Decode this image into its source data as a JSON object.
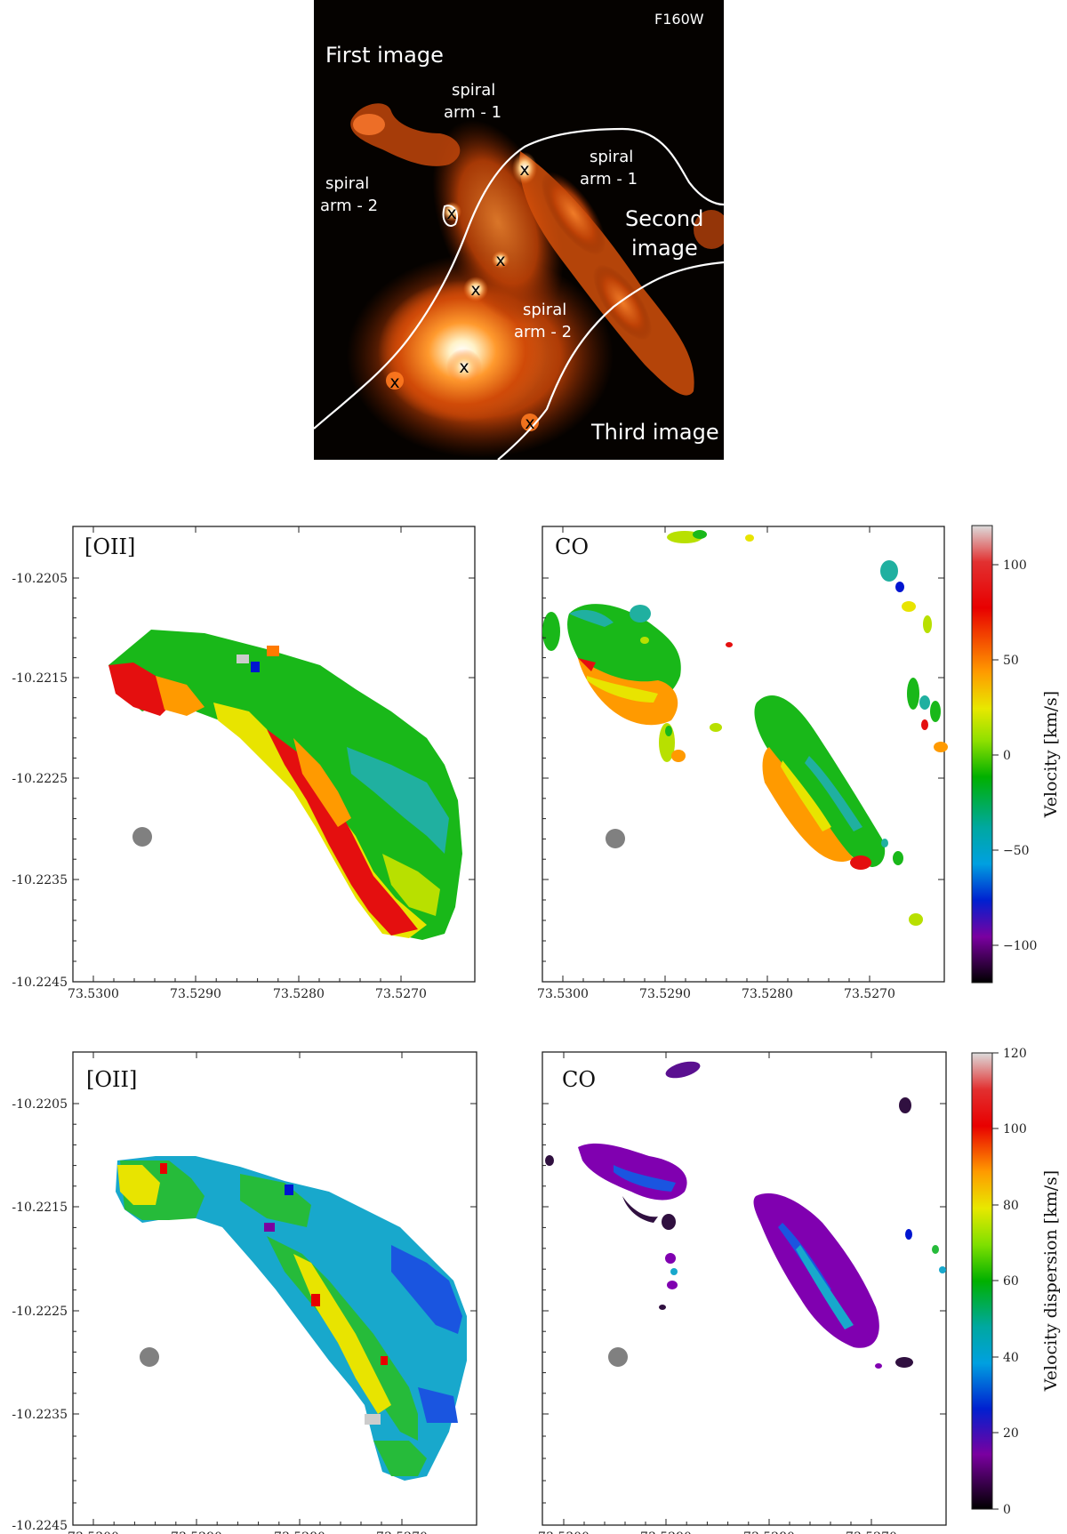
{
  "top_image": {
    "filter_label": "F160W",
    "labels": {
      "first_image": "First  image",
      "second_image_1": "Second",
      "second_image_2": "image",
      "third_image": "Third image",
      "spiral": "spiral",
      "arm1": "arm - 1",
      "arm2": "arm - 2"
    },
    "marker": "x"
  },
  "axes": {
    "x_ticks": [
      "73.5300",
      "73.5290",
      "73.5280",
      "73.5270"
    ],
    "y_ticks": [
      "-10.2205",
      "-10.2215",
      "-10.2225",
      "-10.2235",
      "-10.2245"
    ]
  },
  "panels": {
    "oii_label": "[OII]",
    "co_label": "CO"
  },
  "colorbars": {
    "velocity": {
      "label": "Velocity [km/s]",
      "ticks": [
        "100",
        "50",
        "0",
        "−50",
        "−100"
      ]
    },
    "dispersion": {
      "label": "Velocity dispersion [km/s]",
      "ticks": [
        "120",
        "100",
        "80",
        "60",
        "40",
        "20",
        "0"
      ]
    }
  },
  "colors": {
    "background_top": "#050200",
    "beam": "#808080"
  }
}
